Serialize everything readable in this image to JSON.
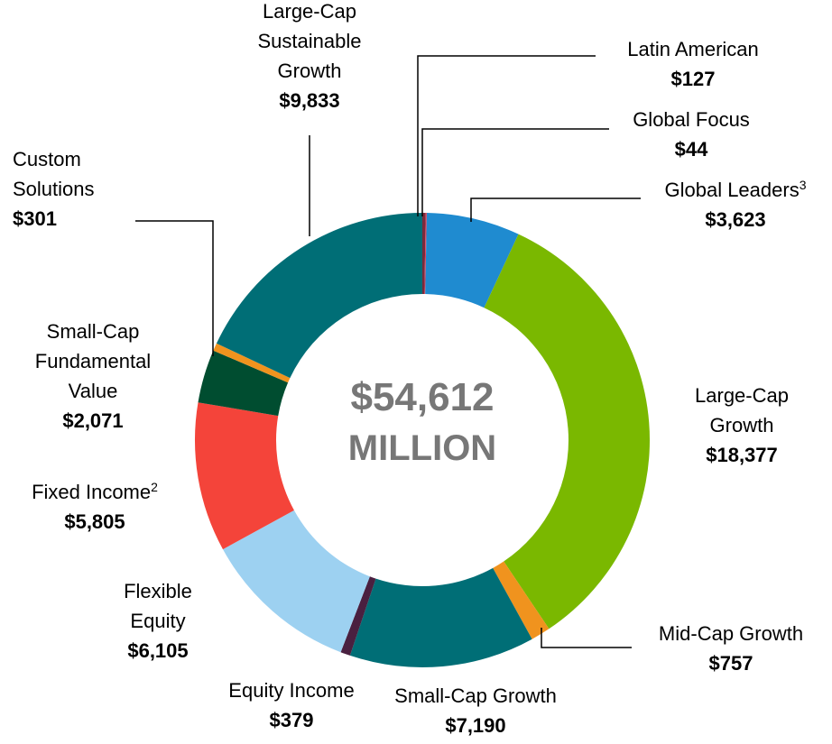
{
  "chart_data": {
    "type": "donut",
    "categories": [
      [
        "Latin American"
      ],
      [
        "Global Focus"
      ],
      [
        "Global Leaders"
      ],
      [
        "Large-Cap",
        "Growth"
      ],
      [
        "Mid-Cap Growth"
      ],
      [
        "Small-Cap Growth"
      ],
      [
        "Equity Income"
      ],
      [
        "Flexible",
        "Equity"
      ],
      [
        "Fixed Income"
      ],
      [
        "Small-Cap",
        "Fundamental",
        "Value"
      ],
      [
        "Custom",
        "Solutions"
      ],
      [
        "Large-Cap",
        "Sustainable",
        "Growth"
      ]
    ],
    "footnotes": [
      null,
      null,
      "3",
      null,
      null,
      null,
      null,
      null,
      "2",
      null,
      null,
      null
    ],
    "values": [
      127,
      44,
      3623,
      18377,
      757,
      7190,
      379,
      6105,
      5805,
      2071,
      301,
      9833
    ],
    "value_labels": [
      "$127",
      "$44",
      "$3,623",
      "$18,377",
      "$757",
      "$7,190",
      "$379",
      "$6,105",
      "$5,805",
      "$2,071",
      "$301",
      "$9,833"
    ],
    "colors": [
      "#7a2a3c",
      "#e0405a",
      "#1f8bd0",
      "#7ab800",
      "#f0931e",
      "#006e76",
      "#4a2040",
      "#9dd1f1",
      "#f4443a",
      "#004d30",
      "#f0931e",
      "#006e76"
    ],
    "total_label": "$54,612",
    "total_unit": "MILLION"
  }
}
